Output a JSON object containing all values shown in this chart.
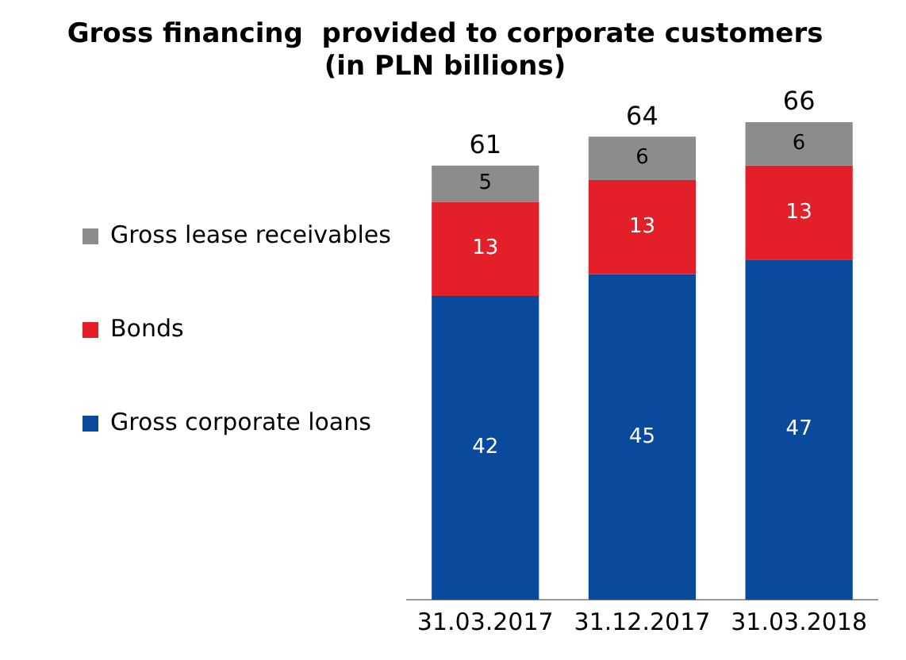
{
  "chart_data": {
    "type": "bar",
    "title": "Gross financing  provided to corporate customers",
    "subtitle": "(in PLN billions)",
    "categories": [
      "31.03.2017",
      "31.12.2017",
      "31.03.2018"
    ],
    "stacked": true,
    "data_labels": true,
    "legend": "left",
    "grid": false,
    "tick_labels": "x",
    "series": [
      {
        "name": "Gross corporate loans",
        "color": "#0a4a9c",
        "values": [
          42,
          45,
          47
        ]
      },
      {
        "name": "Bonds",
        "color": "#e3202a",
        "values": [
          13,
          13,
          13
        ]
      },
      {
        "name": "Gross lease receivables",
        "color": "#8c8c8c",
        "values": [
          5,
          6,
          6
        ]
      }
    ],
    "totals": [
      "61",
      "64",
      "66"
    ]
  }
}
